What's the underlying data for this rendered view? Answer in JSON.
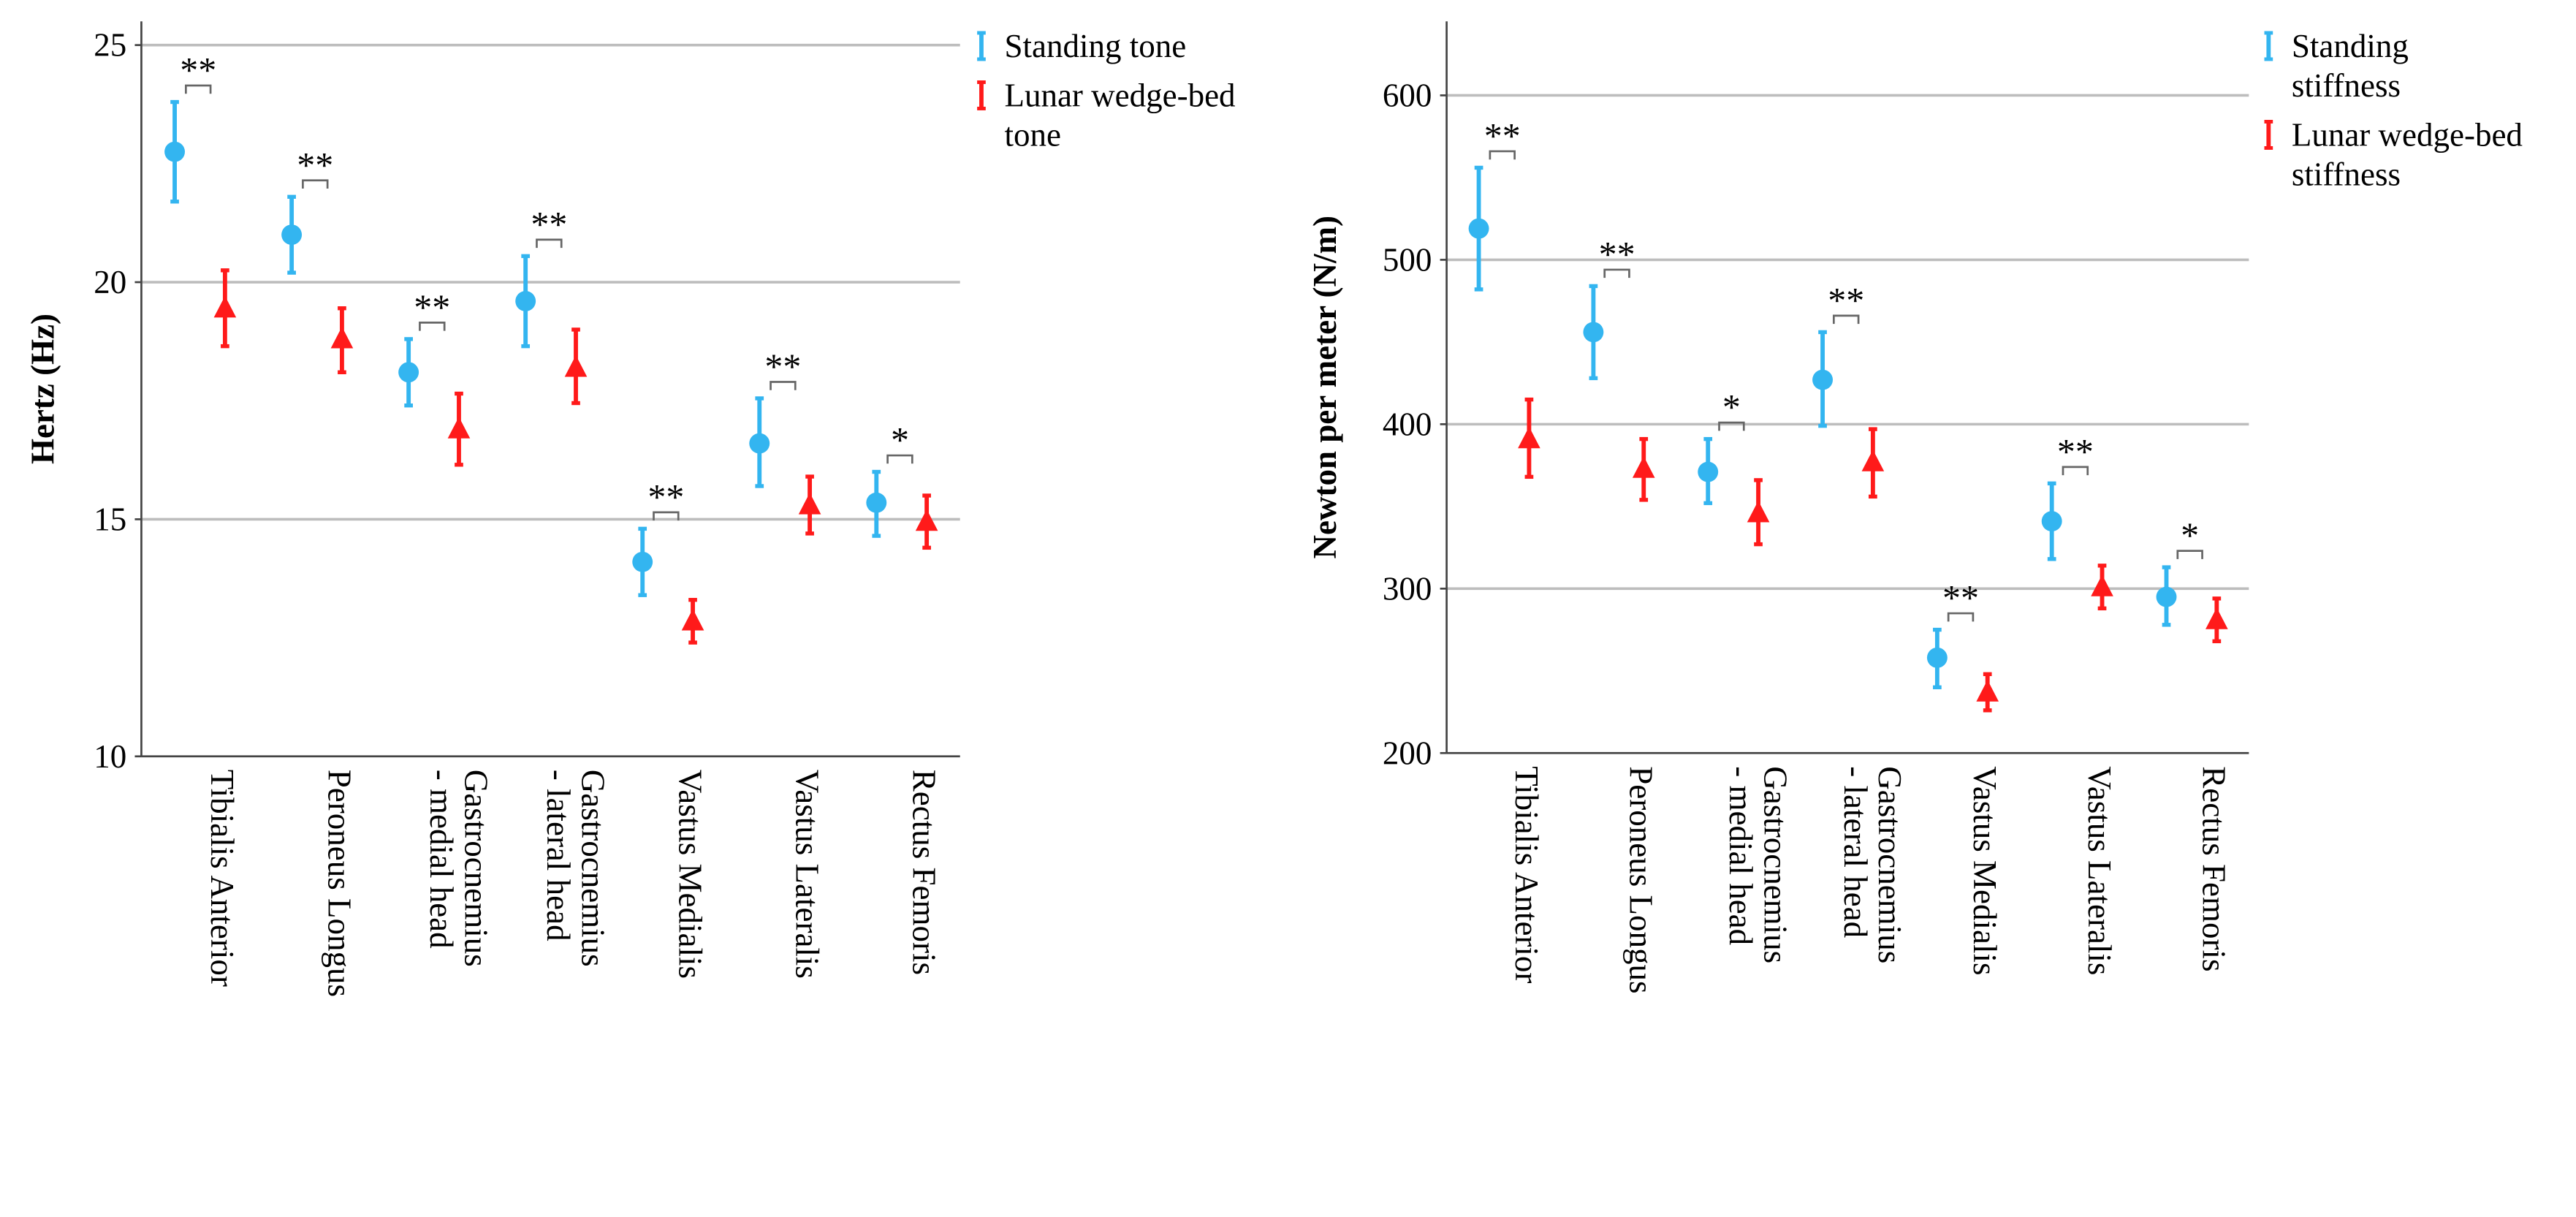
{
  "charts": [
    {
      "legend": [
        {
          "label": "Standing tone",
          "color": "#33b5f0",
          "marker": "circle"
        },
        {
          "label": "Lunar wedge-bed tone",
          "color": "#ff1a1a",
          "marker": "triangle"
        }
      ],
      "chart_data": {
        "type": "scatter",
        "ylabel": "Hertz (Hz)",
        "ylim": [
          10,
          25.5
        ],
        "yticks": [
          10,
          15,
          20,
          25
        ],
        "grid": true,
        "legend_position": "top-right",
        "categories": [
          "Tibialis Anterior",
          "Peroneus Longus",
          "Gastrocnemius - medial head",
          "Gastrocnemius - lateral head",
          "Vastus Medialis",
          "Vastus Lateralis",
          "Rectus Femoris"
        ],
        "series": [
          {
            "name": "Standing tone",
            "values": [
              22.75,
              21.0,
              18.1,
              19.6,
              14.1,
              16.6,
              15.35
            ],
            "lower": [
              21.7,
              20.2,
              17.4,
              18.65,
              13.4,
              15.7,
              14.65
            ],
            "upper": [
              23.8,
              21.8,
              18.8,
              20.55,
              14.8,
              17.55,
              16.0
            ]
          },
          {
            "name": "Lunar wedge-bed tone",
            "values": [
              19.45,
              18.8,
              16.9,
              18.2,
              12.85,
              15.3,
              14.95
            ],
            "lower": [
              18.65,
              18.1,
              16.15,
              17.45,
              12.4,
              14.7,
              14.4
            ],
            "upper": [
              20.25,
              19.45,
              17.65,
              19.0,
              13.3,
              15.9,
              15.5
            ]
          }
        ],
        "significance": [
          "**",
          "**",
          "**",
          "**",
          "**",
          "**",
          "*"
        ]
      }
    },
    {
      "legend": [
        {
          "label": "Standing stiffness",
          "color": "#33b5f0",
          "marker": "bar"
        },
        {
          "label": "Lunar wedge-bed stiffness",
          "color": "#ff1a1a",
          "marker": "bar"
        }
      ],
      "chart_data": {
        "type": "scatter",
        "ylabel": "Newton per meter (N/m)",
        "ylim": [
          200,
          645
        ],
        "yticks": [
          200,
          300,
          400,
          500,
          600
        ],
        "grid": true,
        "legend_position": "top-right",
        "categories": [
          "Tibialis Anterior",
          "Peroneus Longus",
          "Gastrocnemius - medial head",
          "Gastrocnemius - lateral head",
          "Vastus Medialis",
          "Vastus Lateralis",
          "Rectus Femoris"
        ],
        "series": [
          {
            "name": "Standing stiffness",
            "values": [
              519,
              456,
              371,
              427,
              258,
              341,
              295
            ],
            "lower": [
              482,
              428,
              352,
              399,
              240,
              318,
              278
            ],
            "upper": [
              556,
              484,
              391,
              456,
              275,
              364,
              313
            ]
          },
          {
            "name": "Lunar wedge-bed stiffness",
            "values": [
              391,
              373,
              346,
              377,
              237,
              301,
              281
            ],
            "lower": [
              368,
              354,
              327,
              356,
              226,
              288,
              268
            ],
            "upper": [
              415,
              391,
              366,
              397,
              248,
              314,
              294
            ]
          }
        ],
        "significance": [
          "**",
          "**",
          "*",
          "**",
          "**",
          "**",
          "*"
        ]
      }
    }
  ]
}
